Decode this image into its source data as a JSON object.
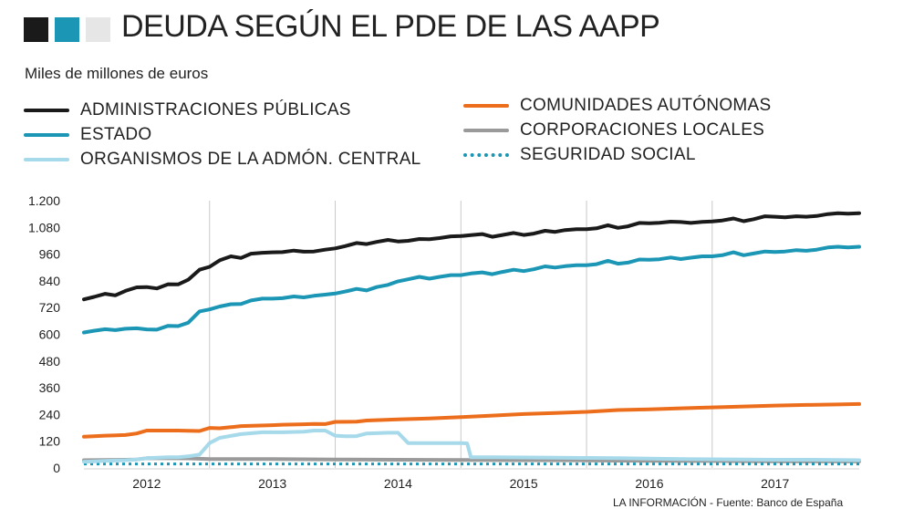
{
  "header": {
    "title": "DEUDA SEGÚN EL PDE DE LAS AAPP",
    "subtitle": "Miles de millones de euros",
    "squares": [
      "#1a1a1a",
      "#1b96b5",
      "#e6e6e6"
    ]
  },
  "legend": [
    {
      "label": "ADMINISTRACIONES PÚBLICAS",
      "color": "#1a1a1a"
    },
    {
      "label": "ESTADO",
      "color": "#1b96b5"
    },
    {
      "label": "ORGANISMOS DE LA ADMÓN. CENTRAL",
      "color": "#a6d9ea"
    },
    {
      "label": "COMUNIDADES AUTÓNOMAS",
      "color": "#ec6e1c"
    },
    {
      "label": "CORPORACIONES LOCALES",
      "color": "#9a9a9a"
    },
    {
      "label": "SEGURIDAD SOCIAL",
      "color": "#1b96b5"
    }
  ],
  "source": "LA INFORMACIÓN - Fuente: Banco de España",
  "chart_data": {
    "type": "line",
    "title": "DEUDA SEGÚN EL PDE DE LAS AAPP",
    "ylabel": "Miles de millones de euros",
    "xlabel": "",
    "x_range": [
      2011.5,
      2017.67
    ],
    "ylim": [
      0,
      1200
    ],
    "yticks": [
      0,
      120,
      240,
      360,
      480,
      600,
      720,
      840,
      960,
      1080,
      1200
    ],
    "ytick_labels": [
      "0",
      "120",
      "240",
      "360",
      "480",
      "600",
      "720",
      "840",
      "960",
      "1.080",
      "1.200"
    ],
    "xticks": [
      2012,
      2013,
      2014,
      2015,
      2016,
      2017
    ],
    "xtick_labels": [
      "2012",
      "2013",
      "2014",
      "2015",
      "2016",
      "2017"
    ],
    "grid": "vertical lines at year boundaries",
    "series": [
      {
        "name": "ADMINISTRACIONES PÚBLICAS",
        "color": "#1a1a1a",
        "style": "solid",
        "x": [
          2011.5,
          2011.58,
          2011.67,
          2011.75,
          2011.83,
          2011.92,
          2012.0,
          2012.08,
          2012.17,
          2012.25,
          2012.33,
          2012.42,
          2012.5,
          2012.58,
          2012.67,
          2012.75,
          2012.83,
          2012.92,
          2013.0,
          2013.08,
          2013.17,
          2013.25,
          2013.33,
          2013.42,
          2013.5,
          2013.58,
          2013.67,
          2013.75,
          2013.83,
          2013.92,
          2014.0,
          2014.08,
          2014.17,
          2014.25,
          2014.33,
          2014.42,
          2014.5,
          2014.58,
          2014.67,
          2014.75,
          2014.83,
          2014.92,
          2015.0,
          2015.08,
          2015.17,
          2015.25,
          2015.33,
          2015.42,
          2015.5,
          2015.58,
          2015.67,
          2015.75,
          2015.83,
          2015.92,
          2016.0,
          2016.08,
          2016.17,
          2016.25,
          2016.33,
          2016.42,
          2016.5,
          2016.58,
          2016.67,
          2016.75,
          2016.83,
          2016.92,
          2017.0,
          2017.08,
          2017.17,
          2017.25,
          2017.33,
          2017.42,
          2017.5,
          2017.58,
          2017.67
        ],
        "values": [
          757,
          768,
          782,
          775,
          795,
          811,
          812,
          806,
          825,
          824,
          845,
          890,
          903,
          932,
          950,
          943,
          962,
          966,
          968,
          969,
          976,
          971,
          972,
          980,
          986,
          996,
          1010,
          1005,
          1015,
          1024,
          1017,
          1020,
          1028,
          1027,
          1032,
          1040,
          1041,
          1045,
          1050,
          1038,
          1046,
          1055,
          1046,
          1052,
          1065,
          1060,
          1068,
          1072,
          1072,
          1076,
          1090,
          1078,
          1085,
          1100,
          1099,
          1101,
          1106,
          1104,
          1100,
          1105,
          1107,
          1111,
          1120,
          1108,
          1117,
          1130,
          1128,
          1125,
          1130,
          1128,
          1131,
          1140,
          1144,
          1142,
          1144
        ]
      },
      {
        "name": "ESTADO",
        "color": "#1b96b5",
        "style": "solid",
        "x": [
          2011.5,
          2011.58,
          2011.67,
          2011.75,
          2011.83,
          2011.92,
          2012.0,
          2012.08,
          2012.17,
          2012.25,
          2012.33,
          2012.42,
          2012.5,
          2012.58,
          2012.67,
          2012.75,
          2012.83,
          2012.92,
          2013.0,
          2013.08,
          2013.17,
          2013.25,
          2013.33,
          2013.42,
          2013.5,
          2013.58,
          2013.67,
          2013.75,
          2013.83,
          2013.92,
          2014.0,
          2014.08,
          2014.17,
          2014.25,
          2014.33,
          2014.42,
          2014.5,
          2014.58,
          2014.67,
          2014.75,
          2014.83,
          2014.92,
          2015.0,
          2015.08,
          2015.17,
          2015.25,
          2015.33,
          2015.42,
          2015.5,
          2015.58,
          2015.67,
          2015.75,
          2015.83,
          2015.92,
          2016.0,
          2016.08,
          2016.17,
          2016.25,
          2016.33,
          2016.42,
          2016.5,
          2016.58,
          2016.67,
          2016.75,
          2016.83,
          2016.92,
          2017.0,
          2017.08,
          2017.17,
          2017.25,
          2017.33,
          2017.42,
          2017.5,
          2017.58,
          2017.67
        ],
        "values": [
          608,
          616,
          623,
          619,
          625,
          627,
          622,
          621,
          638,
          637,
          652,
          703,
          712,
          725,
          735,
          736,
          752,
          760,
          760,
          762,
          770,
          766,
          773,
          778,
          783,
          792,
          804,
          797,
          812,
          822,
          838,
          847,
          858,
          850,
          858,
          866,
          866,
          873,
          878,
          870,
          880,
          890,
          884,
          892,
          905,
          900,
          906,
          910,
          910,
          915,
          930,
          917,
          922,
          936,
          935,
          937,
          945,
          938,
          944,
          950,
          950,
          955,
          968,
          955,
          963,
          972,
          970,
          972,
          978,
          975,
          980,
          990,
          993,
          990,
          993
        ]
      },
      {
        "name": "ORGANISMOS DE LA ADMÓN. CENTRAL",
        "color": "#a6d9ea",
        "style": "solid",
        "x": [
          2011.5,
          2011.67,
          2011.83,
          2011.92,
          2012.0,
          2012.17,
          2012.25,
          2012.33,
          2012.42,
          2012.5,
          2012.58,
          2012.75,
          2012.92,
          2013.08,
          2013.25,
          2013.33,
          2013.42,
          2013.5,
          2013.58,
          2013.67,
          2013.75,
          2013.92,
          2014.0,
          2014.08,
          2014.25,
          2014.5,
          2014.55,
          2014.58,
          2014.75,
          2015.0,
          2015.25,
          2015.5,
          2015.75,
          2016.0,
          2016.25,
          2016.5,
          2016.75,
          2017.0,
          2017.25,
          2017.5,
          2017.67
        ],
        "values": [
          28,
          32,
          35,
          38,
          44,
          48,
          48,
          52,
          60,
          112,
          135,
          152,
          160,
          160,
          163,
          168,
          168,
          145,
          142,
          143,
          155,
          158,
          158,
          112,
          112,
          112,
          110,
          48,
          48,
          47,
          46,
          45,
          44,
          42,
          40,
          39,
          38,
          37,
          37,
          36,
          35
        ]
      },
      {
        "name": "COMUNIDADES AUTÓNOMAS",
        "color": "#ec6e1c",
        "style": "solid",
        "x": [
          2011.5,
          2011.67,
          2011.83,
          2011.92,
          2012.0,
          2012.25,
          2012.33,
          2012.42,
          2012.5,
          2012.58,
          2012.67,
          2012.75,
          2013.0,
          2013.08,
          2013.25,
          2013.33,
          2013.42,
          2013.5,
          2013.67,
          2013.75,
          2014.0,
          2014.25,
          2014.5,
          2014.75,
          2015.0,
          2015.25,
          2015.5,
          2015.75,
          2016.0,
          2016.25,
          2016.5,
          2016.75,
          2017.0,
          2017.25,
          2017.5,
          2017.67
        ],
        "values": [
          140,
          145,
          148,
          155,
          168,
          168,
          167,
          166,
          180,
          178,
          183,
          188,
          192,
          194,
          196,
          198,
          197,
          207,
          208,
          213,
          218,
          222,
          228,
          235,
          242,
          247,
          252,
          260,
          263,
          268,
          272,
          276,
          280,
          283,
          285,
          287
        ]
      },
      {
        "name": "CORPORACIONES LOCALES",
        "color": "#9a9a9a",
        "style": "solid",
        "x": [
          2011.5,
          2011.67,
          2011.83,
          2011.92,
          2012.0,
          2012.33,
          2012.5,
          2012.75,
          2013.0,
          2013.5,
          2014.0,
          2014.5,
          2015.0,
          2015.5,
          2016.0,
          2016.5,
          2017.0,
          2017.67
        ],
        "values": [
          35,
          36,
          37,
          38,
          44,
          43,
          40,
          40,
          40,
          38,
          37,
          36,
          35,
          34,
          32,
          31,
          30,
          29
        ]
      },
      {
        "name": "SEGURIDAD SOCIAL",
        "color": "#1b96b5",
        "style": "dotted",
        "x": [
          2011.5,
          2012.0,
          2012.5,
          2013.0,
          2013.5,
          2014.0,
          2014.5,
          2015.0,
          2015.5,
          2016.0,
          2016.5,
          2017.0,
          2017.5,
          2017.67
        ],
        "values": [
          18,
          18,
          18,
          18,
          18,
          18,
          18,
          18,
          18,
          18,
          18,
          18,
          18,
          18
        ]
      }
    ]
  }
}
